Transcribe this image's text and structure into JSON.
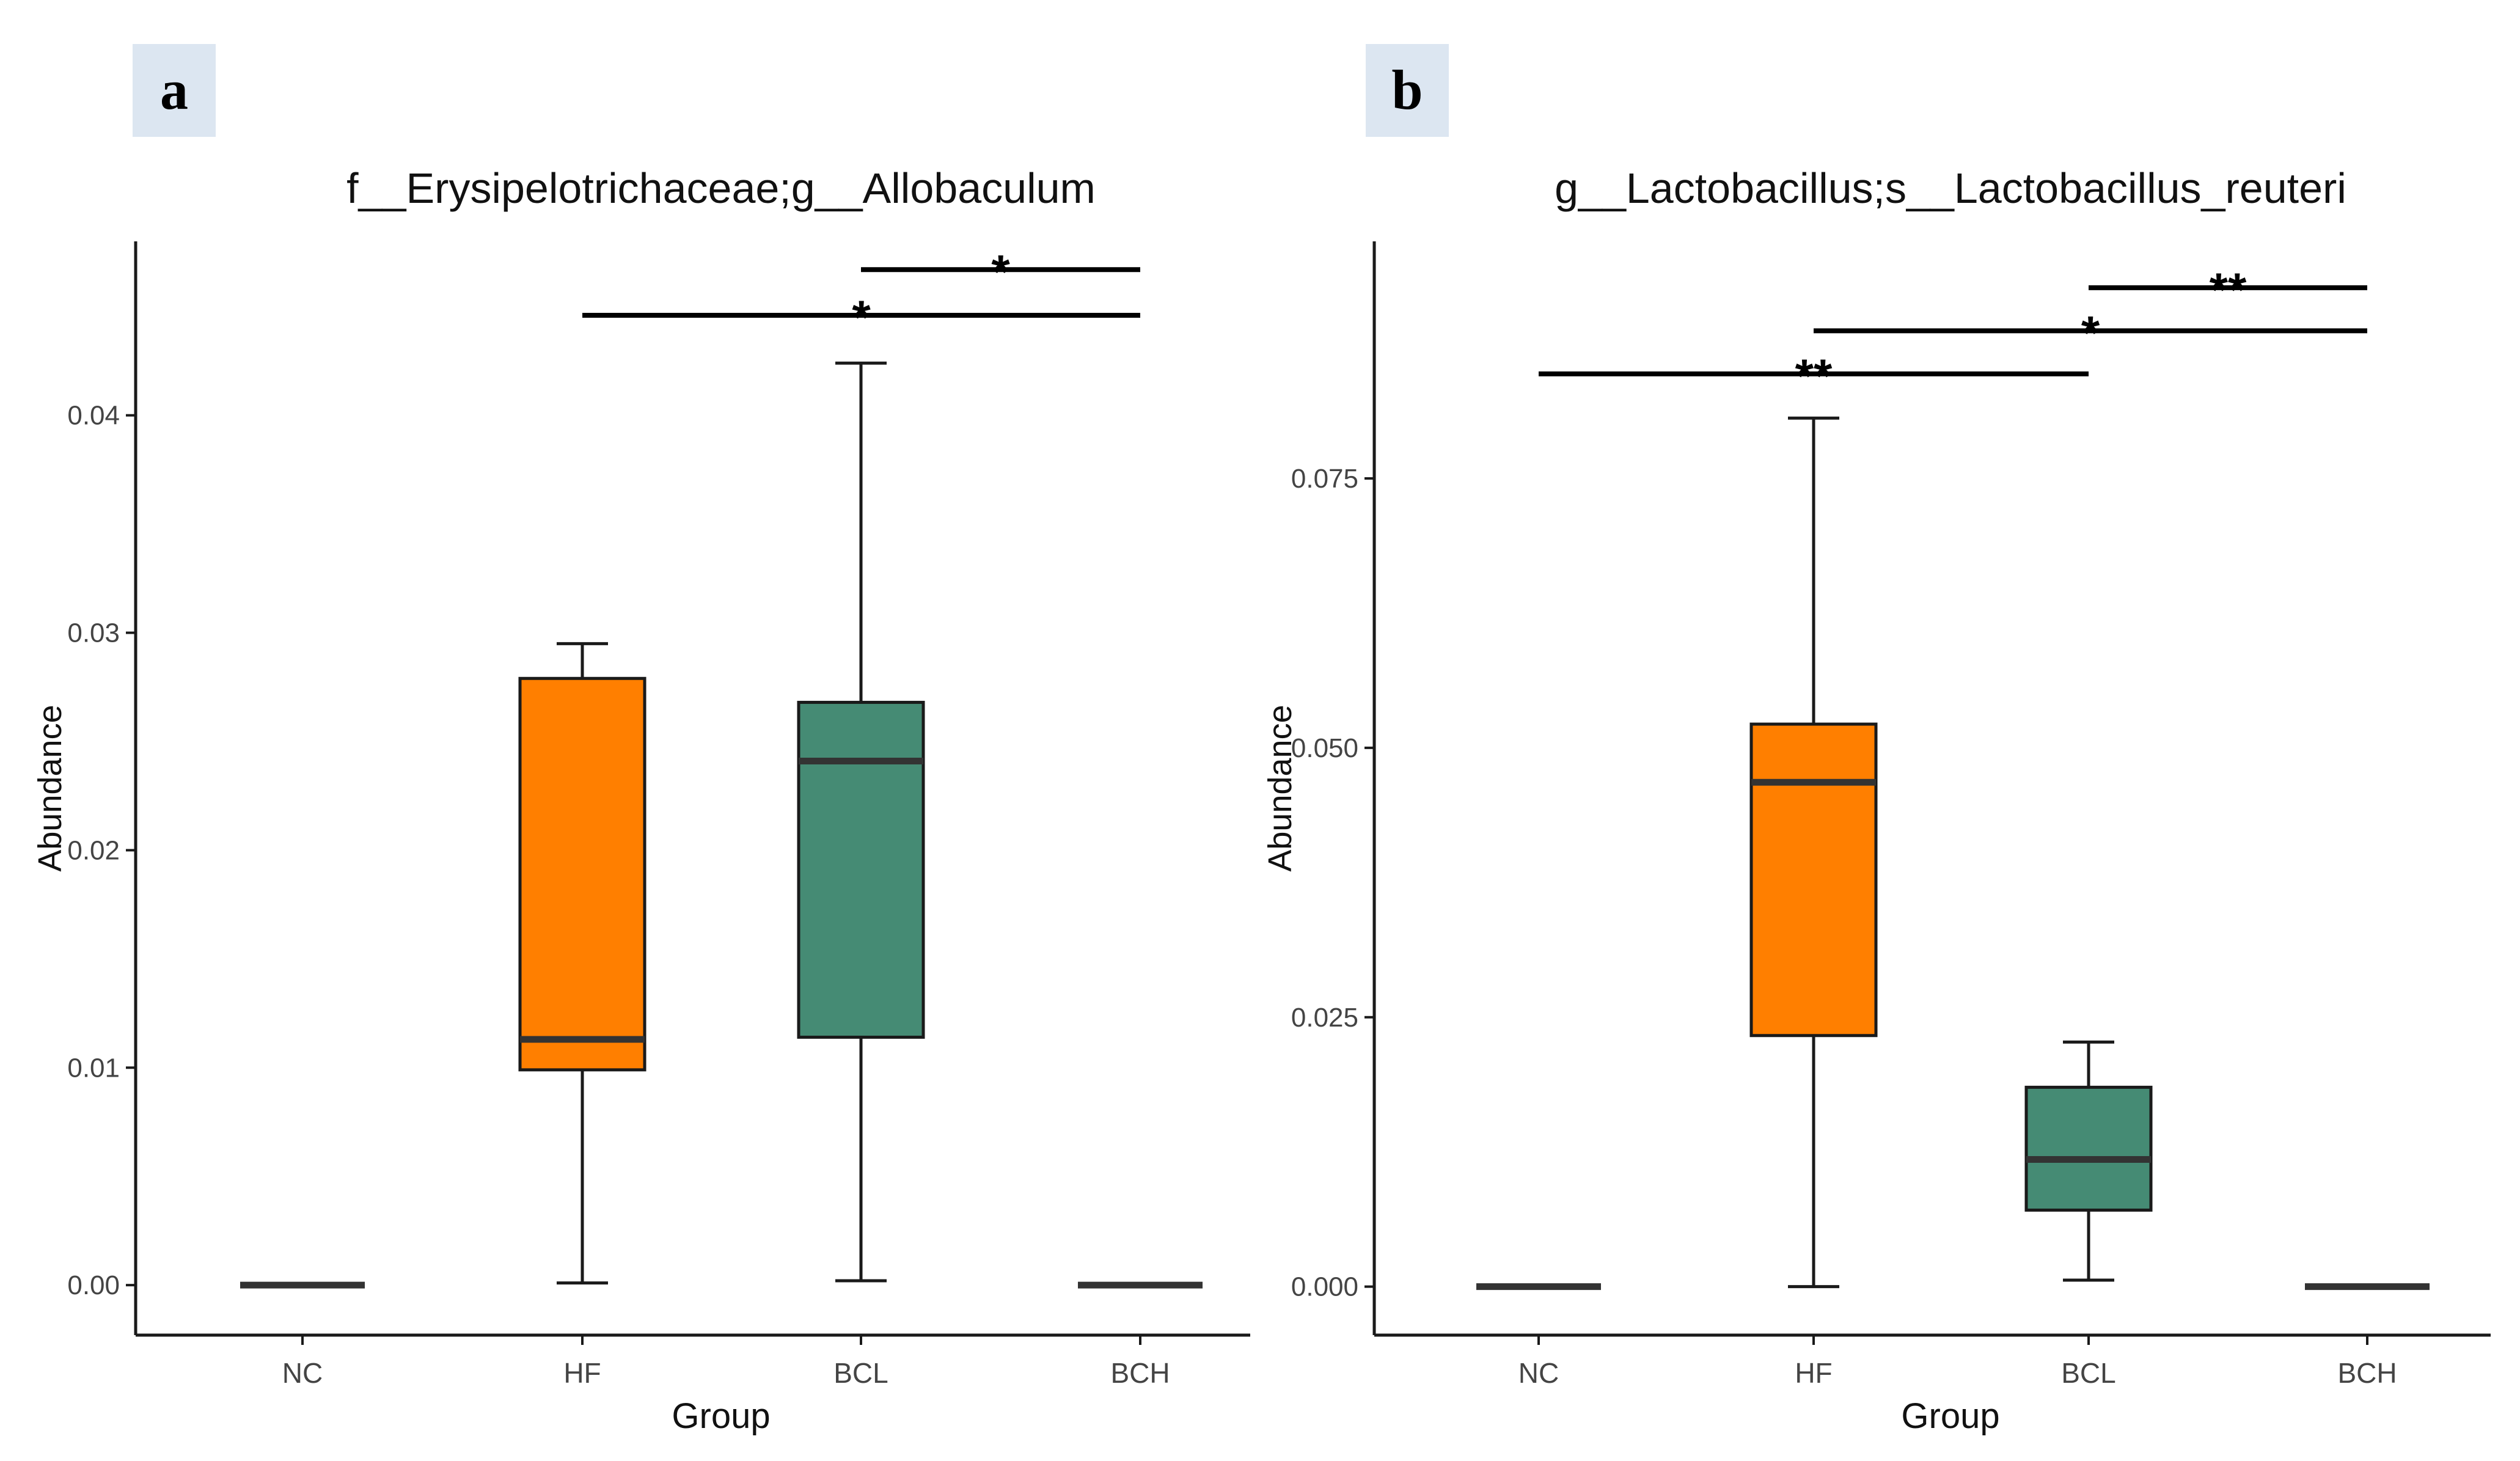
{
  "panels": [
    {
      "panel_label": "a",
      "colors": {
        "panel_tag_bg": "#dce6f1",
        "HF": "#ff7f00",
        "BCL": "#458b74",
        "line": "#1a1a1a",
        "median": "#333333"
      },
      "chart_data": {
        "type": "boxplot",
        "title": "f__Erysipelotrichaceae;g__Allobaculum",
        "xlabel": "Group",
        "ylabel": "Abundance",
        "categories": [
          "NC",
          "HF",
          "BCL",
          "BCH"
        ],
        "ylim": [
          -0.0023,
          0.048
        ],
        "y_ticks": [
          0.0,
          0.01,
          0.02,
          0.03,
          0.04
        ],
        "y_tick_labels": [
          "0.00",
          "0.01",
          "0.02",
          "0.03",
          "0.04"
        ],
        "boxes": [
          {
            "group": "NC",
            "min": 0.0,
            "q1": 0.0,
            "median": 0.0,
            "q3": 0.0,
            "max": 0.0,
            "fill": "#333333",
            "flat": true
          },
          {
            "group": "HF",
            "min": 0.0001,
            "q1": 0.0099,
            "median": 0.0113,
            "q3": 0.0279,
            "max": 0.0295,
            "fill": "#ff7f00",
            "flat": false
          },
          {
            "group": "BCL",
            "min": 0.0002,
            "q1": 0.0114,
            "median": 0.0241,
            "q3": 0.0268,
            "max": 0.0424,
            "fill": "#458b74",
            "flat": false
          },
          {
            "group": "BCH",
            "min": 0.0,
            "q1": 0.0,
            "median": 0.0,
            "q3": 0.0,
            "max": 0.0,
            "fill": "#333333",
            "flat": true
          }
        ],
        "significance": [
          {
            "from": "BCL",
            "to": "BCH",
            "y": 0.0467,
            "label": "*"
          },
          {
            "from": "HF",
            "to": "BCH",
            "y": 0.0446,
            "label": "*"
          }
        ]
      }
    },
    {
      "panel_label": "b",
      "colors": {
        "panel_tag_bg": "#dce6f1",
        "HF": "#ff7f00",
        "BCL": "#458b74",
        "line": "#1a1a1a",
        "median": "#333333"
      },
      "chart_data": {
        "type": "boxplot",
        "title": "g__Lactobacillus;s__Lactobacillus_reuteri",
        "xlabel": "Group",
        "ylabel": "Abundance",
        "categories": [
          "NC",
          "HF",
          "BCL",
          "BCH"
        ],
        "ylim": [
          -0.0045,
          0.097
        ],
        "y_ticks": [
          0.0,
          0.025,
          0.05,
          0.075
        ],
        "y_tick_labels": [
          "0.000",
          "0.025",
          "0.050",
          "0.075"
        ],
        "boxes": [
          {
            "group": "NC",
            "min": 0.0,
            "q1": 0.0,
            "median": 0.0,
            "q3": 0.0,
            "max": 0.0,
            "fill": "#333333",
            "flat": true
          },
          {
            "group": "HF",
            "min": 0.0,
            "q1": 0.0233,
            "median": 0.0468,
            "q3": 0.0522,
            "max": 0.0806,
            "fill": "#ff7f00",
            "flat": false
          },
          {
            "group": "BCL",
            "min": 0.0006,
            "q1": 0.0071,
            "median": 0.0118,
            "q3": 0.0185,
            "max": 0.0227,
            "fill": "#458b74",
            "flat": false
          },
          {
            "group": "BCH",
            "min": 0.0,
            "q1": 0.0,
            "median": 0.0,
            "q3": 0.0,
            "max": 0.0,
            "fill": "#333333",
            "flat": true
          }
        ],
        "significance": [
          {
            "from": "BCL",
            "to": "BCH",
            "y": 0.0927,
            "label": "**"
          },
          {
            "from": "HF",
            "to": "BCH",
            "y": 0.0887,
            "label": "*"
          },
          {
            "from": "NC",
            "to": "BCL",
            "y": 0.0847,
            "label": "**"
          }
        ]
      }
    }
  ]
}
